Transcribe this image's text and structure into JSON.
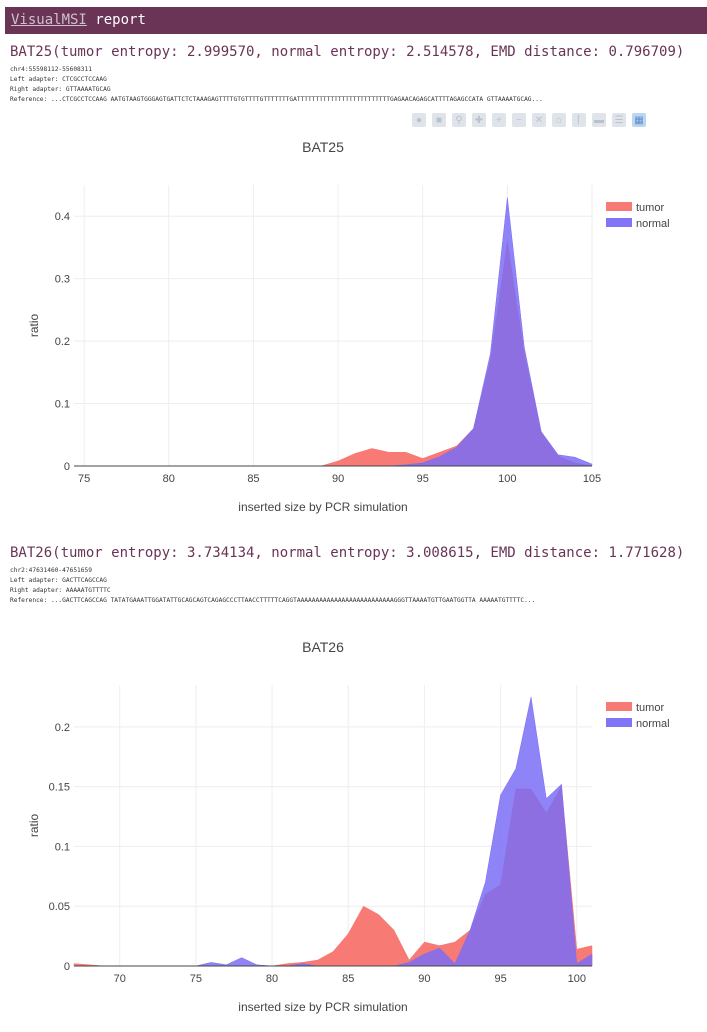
{
  "header": {
    "brand": "VisualMSI",
    "title": "report"
  },
  "toolbar": {
    "icons": [
      "camera-icon",
      "save-icon",
      "zoom-icon",
      "pan-icon",
      "zoom-in-icon",
      "zoom-out-icon",
      "autoscale-icon",
      "reset-axes-icon",
      "spike-lines-icon",
      "hover-closest-icon",
      "hover-compare-icon",
      "plotly-logo-icon"
    ]
  },
  "sections": [
    {
      "title": "BAT25(tumor entropy: 2.999570, normal entropy: 2.514578, EMD distance: 0.796709)",
      "locus": "chr4:55598112-55608311",
      "left_adapter": "Left adapter: CTCGCCTCCAAG",
      "right_adapter": "Right adapter: GTTAAAATGCAG",
      "reference": "Reference: ...CTCGCCTCCAAG AATGTAAGTGGGAGTGATTCTCTAAAGAGTTTTGTGTTTTGTTTTTTTGATTTTTTTTTTTTTTTTTTTTTTTTTGAGAACAGAGCATTTTAGAGCCATA GTTAAAATGCAG..."
    },
    {
      "title": "BAT26(tumor entropy: 3.734134, normal entropy: 3.008615, EMD distance: 1.771628)",
      "locus": "chr2:47631460-47651659",
      "left_adapter": "Left adapter: GACTTCAGCCAG",
      "right_adapter": "Right adapter: AAAAATGTTTTC",
      "reference": "Reference: ...GACTTCAGCCAG TATATGAAATTGGATATTGCAGCAGTCAGAGCCCTTAACCTTTTTCAGGTAAAAAAAAAAAAAAAAAAAAAAAAAAGGGTTAAAATGTTGAATGGTTA AAAAATGTTTTC..."
    }
  ],
  "chart_data": [
    {
      "type": "area",
      "title": "BAT25",
      "xlabel": "inserted size by PCR simulation",
      "ylabel": "ratio",
      "xlim": [
        74.4,
        105
      ],
      "ylim": [
        0,
        0.45
      ],
      "xticks": [
        75,
        80,
        85,
        90,
        95,
        100,
        105
      ],
      "yticks": [
        0,
        0.1,
        0.2,
        0.3,
        0.4
      ],
      "legend": "top-right",
      "grid": true,
      "series": [
        {
          "name": "tumor",
          "color": "#f8736e",
          "x": [
            74.4,
            89,
            90,
            91,
            92,
            93,
            94,
            95,
            96,
            97,
            98,
            99,
            100,
            101,
            102,
            103,
            104,
            105
          ],
          "y": [
            0,
            0,
            0.008,
            0.02,
            0.028,
            0.022,
            0.022,
            0.012,
            0.022,
            0.032,
            0.06,
            0.17,
            0.36,
            0.18,
            0.055,
            0.016,
            0.005,
            0
          ]
        },
        {
          "name": "normal",
          "color": "#7a6df6",
          "x": [
            74.4,
            93,
            94,
            95,
            96,
            97,
            98,
            99,
            100,
            101,
            102,
            103,
            104,
            105
          ],
          "y": [
            0,
            0,
            0.002,
            0.005,
            0.015,
            0.03,
            0.06,
            0.18,
            0.43,
            0.19,
            0.055,
            0.018,
            0.014,
            0.003
          ]
        }
      ]
    },
    {
      "type": "area",
      "title": "BAT26",
      "xlabel": "inserted size by PCR simulation",
      "ylabel": "ratio",
      "xlim": [
        67,
        101
      ],
      "ylim": [
        0,
        0.235
      ],
      "xticks": [
        70,
        75,
        80,
        85,
        90,
        95,
        100
      ],
      "yticks": [
        0,
        0.05,
        0.1,
        0.15,
        0.2
      ],
      "legend": "top-right",
      "grid": true,
      "series": [
        {
          "name": "tumor",
          "color": "#f8736e",
          "x": [
            67,
            68,
            69,
            70,
            75,
            80,
            81,
            82,
            83,
            84,
            85,
            86,
            87,
            88,
            89,
            90,
            91,
            92,
            93,
            94,
            95,
            96,
            97,
            98,
            99,
            100,
            101
          ],
          "y": [
            0.002,
            0.001,
            0,
            0,
            0,
            0,
            0.002,
            0.003,
            0.005,
            0.012,
            0.027,
            0.05,
            0.043,
            0.03,
            0.005,
            0.02,
            0.017,
            0.02,
            0.03,
            0.06,
            0.068,
            0.148,
            0.148,
            0.128,
            0.15,
            0.014,
            0.017
          ]
        },
        {
          "name": "normal",
          "color": "#7a6df6",
          "x": [
            67,
            75,
            76,
            77,
            78,
            79,
            80,
            81,
            82,
            83,
            84,
            85,
            86,
            87,
            88,
            89,
            90,
            91,
            92,
            93,
            94,
            95,
            96,
            97,
            98,
            99,
            100,
            101
          ],
          "y": [
            0,
            0,
            0.003,
            0.001,
            0.007,
            0.001,
            0,
            0,
            0.002,
            0,
            0,
            0,
            0,
            0,
            0,
            0.003,
            0.01,
            0.015,
            0.002,
            0.03,
            0.07,
            0.143,
            0.165,
            0.225,
            0.14,
            0.152,
            0.002,
            0.01
          ]
        }
      ]
    }
  ]
}
